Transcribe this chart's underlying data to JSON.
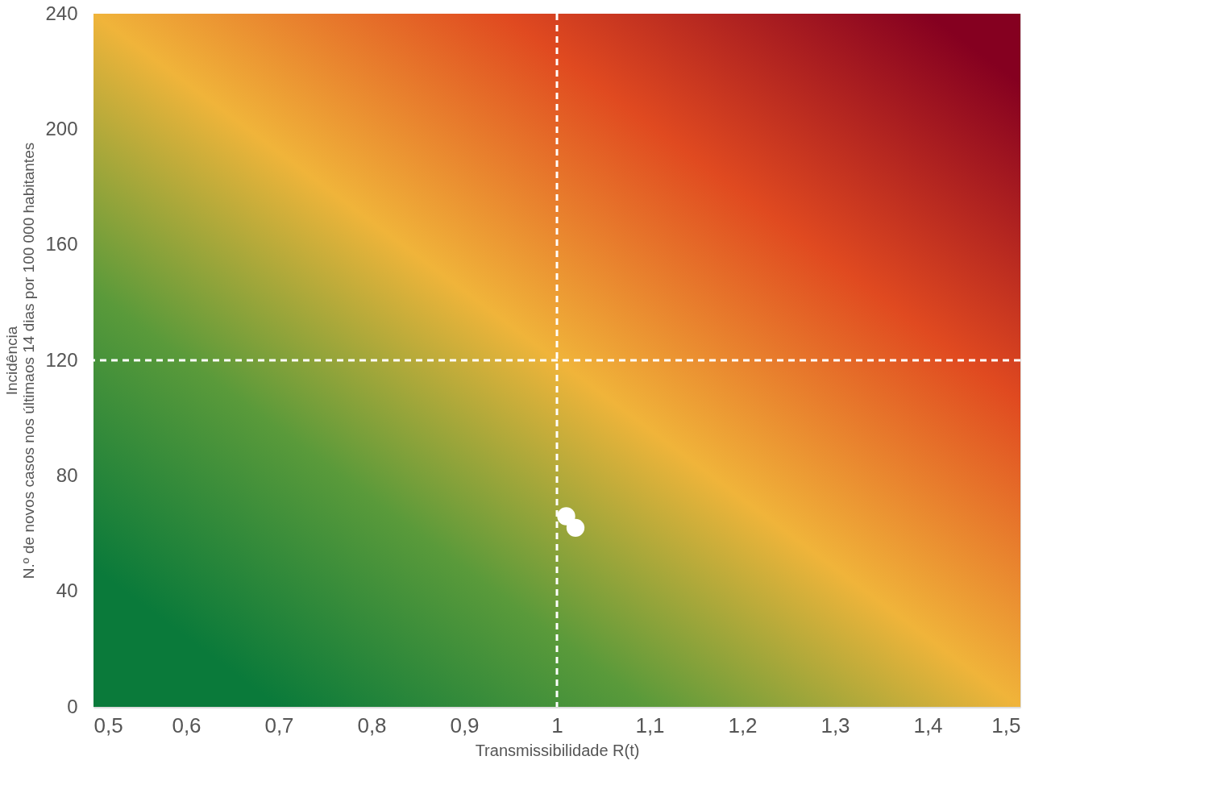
{
  "chart_data": {
    "type": "scatter",
    "xlabel": "Transmissibilidade R(t)",
    "ylabel": "Incidência\nN.º de novos casos nos últimaos 14 dias por 100 000 habitantes",
    "x": [
      1.01,
      1.02
    ],
    "values": [
      66,
      62
    ],
    "color": "#ffffff",
    "marker": "circle",
    "grid": false,
    "xlim": [
      0.5,
      1.5
    ],
    "ylim": [
      0,
      240
    ],
    "xticks": [
      {
        "value": 0.5,
        "label": "0,5"
      },
      {
        "value": 0.6,
        "label": "0,6"
      },
      {
        "value": 0.7,
        "label": "0,7"
      },
      {
        "value": 0.8,
        "label": "0,8"
      },
      {
        "value": 0.9,
        "label": "0,9"
      },
      1,
      {
        "value": 1.1,
        "label": "1,1"
      },
      {
        "value": 1.2,
        "label": "1,2"
      },
      {
        "value": 1.3,
        "label": "1,3"
      },
      {
        "value": 1.4,
        "label": "1,4"
      },
      {
        "value": 1.5,
        "label": "1,5"
      }
    ],
    "yticks": [
      0,
      40,
      80,
      120,
      160,
      200,
      240
    ],
    "ref_lines": [
      {
        "axis": "x",
        "value": 1,
        "color": "#ffffff",
        "line_style": "dashed"
      },
      {
        "axis": "y",
        "value": 120,
        "color": "#ffffff",
        "line_style": "dashed"
      }
    ]
  }
}
